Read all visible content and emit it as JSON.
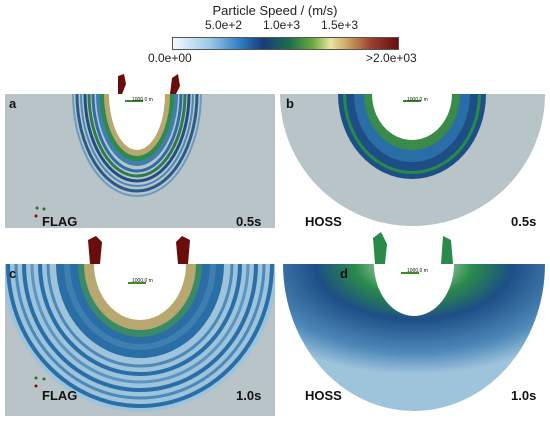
{
  "colorbar": {
    "title": "Particle Speed / (m/s)",
    "upper_ticks": [
      "5.0e+2",
      "1.0e+3",
      "1.5e+3"
    ],
    "min_label": "0.0e+00",
    "max_label": ">2.0e+03",
    "colors": [
      "#e8f4ff",
      "#6fb3e0",
      "#1f5fa8",
      "#1a7a3c",
      "#c8a05a",
      "#7a1010"
    ]
  },
  "panels": [
    {
      "label": "a",
      "code": "FLAG",
      "time": "0.5s",
      "scale": "1000.0 m"
    },
    {
      "label": "b",
      "code": "HOSS",
      "time": "0.5s",
      "scale": "1000.0 m"
    },
    {
      "label": "c",
      "code": "FLAG",
      "time": "1.0s",
      "scale": "1000.0 m"
    },
    {
      "label": "d",
      "code": "HOSS",
      "time": "1.0s",
      "scale": "1000.0 m"
    }
  ]
}
